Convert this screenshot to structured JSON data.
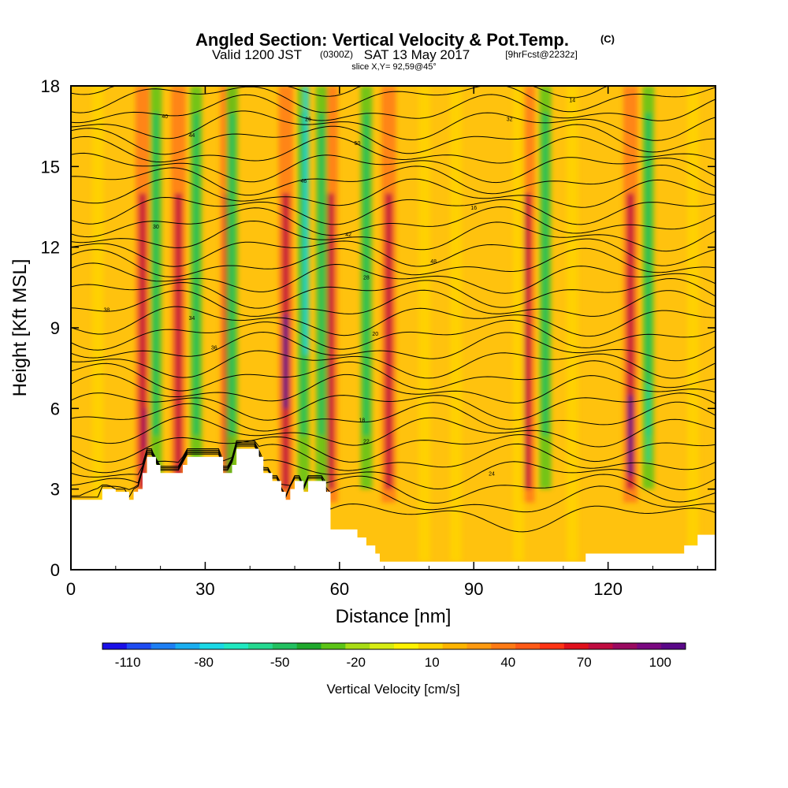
{
  "title": {
    "main": "Angled Section: Vertical Velocity & Pot.Temp.",
    "unit": "(C)",
    "valid_a": "Valid 1200 JST",
    "valid_z": "(0300Z)",
    "valid_b": "SAT 13 May 2017",
    "fcst": "[9hrFcst@2232z]",
    "slice": "slice X,Y= 92,59@45°"
  },
  "chart_data": {
    "type": "heatmap",
    "xlabel": "Distance [nm]",
    "ylabel": "Height [Kft MSL]",
    "xlim": [
      0,
      144
    ],
    "ylim": [
      0,
      18
    ],
    "x_ticks": [
      "0",
      "30",
      "60",
      "90",
      "120"
    ],
    "y_ticks": [
      "0",
      "3",
      "6",
      "9",
      "12",
      "15",
      "18"
    ],
    "colorbar": {
      "label": "Vertical Velocity [cm/s]",
      "tick_labels": [
        "-110",
        "-80",
        "-50",
        "-20",
        "10",
        "40",
        "70",
        "100"
      ],
      "range": [
        -120,
        110
      ],
      "colors": [
        "#1a10e8",
        "#1f4cf2",
        "#1e7ff4",
        "#1aaef0",
        "#19d8e6",
        "#1fe8c0",
        "#24d890",
        "#22c060",
        "#1fa82c",
        "#5cc416",
        "#a8dc14",
        "#d6ec12",
        "#fff200",
        "#ffd400",
        "#ffb400",
        "#ff9a10",
        "#ff7a14",
        "#ff5a16",
        "#ff3414",
        "#e0101c",
        "#c00c40",
        "#9a0a60",
        "#7a0880",
        "#5a0888"
      ]
    },
    "theta_contour_labels": [
      "18",
      "14",
      "40",
      "26",
      "30",
      "34",
      "36",
      "38",
      "32",
      "44",
      "50",
      "48",
      "46",
      "42",
      "28",
      "24",
      "22",
      "20",
      "16"
    ],
    "updraft_columns_nm": [
      16,
      24,
      35,
      48,
      58,
      71,
      102,
      125
    ],
    "downdraft_columns_nm": [
      19,
      28,
      36,
      52,
      56,
      66,
      106,
      129
    ],
    "terrain_kft": [
      [
        0,
        2.6
      ],
      [
        5,
        2.6
      ],
      [
        7,
        3.0
      ],
      [
        10,
        2.9
      ],
      [
        12,
        2.9
      ],
      [
        13,
        2.6
      ],
      [
        14,
        2.9
      ],
      [
        15,
        3.0
      ],
      [
        16,
        3.6
      ],
      [
        17,
        4.2
      ],
      [
        19,
        3.9
      ],
      [
        20,
        3.6
      ],
      [
        24,
        3.6
      ],
      [
        25,
        3.9
      ],
      [
        26,
        4.2
      ],
      [
        33,
        4.2
      ],
      [
        34,
        3.6
      ],
      [
        36,
        3.9
      ],
      [
        37,
        4.5
      ],
      [
        41,
        4.5
      ],
      [
        42,
        4.2
      ],
      [
        43,
        3.6
      ],
      [
        45,
        3.3
      ],
      [
        47,
        2.9
      ],
      [
        48,
        2.6
      ],
      [
        49,
        3.0
      ],
      [
        50,
        3.3
      ],
      [
        52,
        2.9
      ],
      [
        53,
        3.3
      ],
      [
        56,
        3.3
      ],
      [
        57,
        2.9
      ],
      [
        58,
        1.5
      ],
      [
        62,
        1.5
      ],
      [
        64,
        1.2
      ],
      [
        66,
        0.9
      ],
      [
        68,
        0.6
      ],
      [
        69,
        0.3
      ],
      [
        114,
        0.3
      ],
      [
        115,
        0.6
      ],
      [
        134,
        0.6
      ],
      [
        137,
        0.9
      ],
      [
        140,
        1.3
      ],
      [
        144,
        1.3
      ]
    ]
  }
}
